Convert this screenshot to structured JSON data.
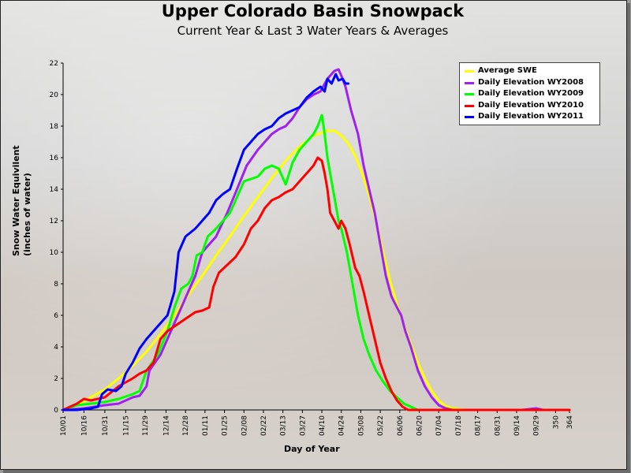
{
  "chart_data": {
    "type": "line",
    "title": "Upper Colorado Basin Snowpack",
    "subtitle": "Current Year & Last 3 Water Years & Averages",
    "xlabel": "Day of Year",
    "ylabel": [
      "Snow Water Equivilent",
      "(inches of water)"
    ],
    "xlim": [
      0,
      364
    ],
    "ylim": [
      0,
      22
    ],
    "y_ticks": [
      0,
      2,
      4,
      6,
      8,
      10,
      12,
      14,
      16,
      18,
      20,
      22
    ],
    "x_ticks": [
      {
        "day": 0,
        "label": "10/01"
      },
      {
        "day": 15,
        "label": "10/16"
      },
      {
        "day": 30,
        "label": "10/31"
      },
      {
        "day": 45,
        "label": "11/15"
      },
      {
        "day": 59,
        "label": "11/29"
      },
      {
        "day": 74,
        "label": "12/14"
      },
      {
        "day": 88,
        "label": "12/28"
      },
      {
        "day": 102,
        "label": "01/11"
      },
      {
        "day": 116,
        "label": "01/25"
      },
      {
        "day": 130,
        "label": "02/08"
      },
      {
        "day": 144,
        "label": "02/22"
      },
      {
        "day": 158,
        "label": "03/13"
      },
      {
        "day": 172,
        "label": "03/27"
      },
      {
        "day": 186,
        "label": "04/10"
      },
      {
        "day": 200,
        "label": "04/24"
      },
      {
        "day": 214,
        "label": "05/08"
      },
      {
        "day": 228,
        "label": "05/22"
      },
      {
        "day": 242,
        "label": "06/06"
      },
      {
        "day": 256,
        "label": "06/20"
      },
      {
        "day": 270,
        "label": "07/04"
      },
      {
        "day": 284,
        "label": "07/18"
      },
      {
        "day": 298,
        "label": "08/17"
      },
      {
        "day": 312,
        "label": "08/31"
      },
      {
        "day": 326,
        "label": "09/14"
      },
      {
        "day": 340,
        "label": "09/29"
      },
      {
        "day": 354,
        "label": "350"
      },
      {
        "day": 364,
        "label": "364"
      }
    ],
    "legend_position": "top-right",
    "series": [
      {
        "name": "Average SWE",
        "color": "#ffff00",
        "points": [
          [
            0,
            0
          ],
          [
            10,
            0.3
          ],
          [
            20,
            0.8
          ],
          [
            30,
            1.3
          ],
          [
            40,
            2
          ],
          [
            50,
            2.8
          ],
          [
            60,
            3.7
          ],
          [
            70,
            4.8
          ],
          [
            80,
            6
          ],
          [
            90,
            7.3
          ],
          [
            100,
            8.5
          ],
          [
            110,
            9.8
          ],
          [
            120,
            11
          ],
          [
            130,
            12.3
          ],
          [
            140,
            13.5
          ],
          [
            150,
            14.7
          ],
          [
            160,
            15.8
          ],
          [
            170,
            16.7
          ],
          [
            180,
            17.4
          ],
          [
            190,
            17.7
          ],
          [
            195,
            17.7
          ],
          [
            200,
            17.4
          ],
          [
            205,
            16.9
          ],
          [
            210,
            16.1
          ],
          [
            215,
            15
          ],
          [
            220,
            13.6
          ],
          [
            225,
            12
          ],
          [
            230,
            10
          ],
          [
            235,
            8.2
          ],
          [
            240,
            6.7
          ],
          [
            245,
            5.4
          ],
          [
            250,
            4.2
          ],
          [
            255,
            3
          ],
          [
            260,
            2
          ],
          [
            265,
            1.2
          ],
          [
            270,
            0.6
          ],
          [
            275,
            0.25
          ],
          [
            280,
            0.1
          ],
          [
            290,
            0
          ],
          [
            364,
            0
          ]
        ]
      },
      {
        "name": "Daily Elevation WY2008",
        "color": "#a020f0",
        "points": [
          [
            0,
            0
          ],
          [
            15,
            0.1
          ],
          [
            30,
            0.3
          ],
          [
            40,
            0.4
          ],
          [
            50,
            0.8
          ],
          [
            55,
            0.9
          ],
          [
            60,
            1.5
          ],
          [
            62,
            2.5
          ],
          [
            70,
            3.5
          ],
          [
            75,
            4.5
          ],
          [
            80,
            5.5
          ],
          [
            85,
            6.5
          ],
          [
            90,
            7.5
          ],
          [
            95,
            8.5
          ],
          [
            100,
            10
          ],
          [
            110,
            11
          ],
          [
            118,
            12.5
          ],
          [
            125,
            14
          ],
          [
            132,
            15.5
          ],
          [
            140,
            16.5
          ],
          [
            145,
            17
          ],
          [
            150,
            17.5
          ],
          [
            155,
            17.8
          ],
          [
            160,
            18
          ],
          [
            165,
            18.5
          ],
          [
            170,
            19.2
          ],
          [
            175,
            19.7
          ],
          [
            180,
            20
          ],
          [
            185,
            20.2
          ],
          [
            190,
            21
          ],
          [
            195,
            21.5
          ],
          [
            198,
            21.6
          ],
          [
            200,
            21.2
          ],
          [
            203,
            20.5
          ],
          [
            207,
            19
          ],
          [
            212,
            17.5
          ],
          [
            216,
            15.5
          ],
          [
            220,
            14
          ],
          [
            224,
            12.5
          ],
          [
            228,
            10.5
          ],
          [
            232,
            8.5
          ],
          [
            236,
            7.2
          ],
          [
            240,
            6.5
          ],
          [
            243,
            6
          ],
          [
            246,
            5
          ],
          [
            250,
            4
          ],
          [
            255,
            2.5
          ],
          [
            260,
            1.5
          ],
          [
            265,
            0.8
          ],
          [
            270,
            0.3
          ],
          [
            275,
            0.1
          ],
          [
            280,
            0
          ],
          [
            330,
            0
          ],
          [
            340,
            0.1
          ],
          [
            345,
            0
          ],
          [
            364,
            0
          ]
        ]
      },
      {
        "name": "Daily Elevation WY2009",
        "color": "#00ff00",
        "points": [
          [
            0,
            0
          ],
          [
            10,
            0.3
          ],
          [
            20,
            0.4
          ],
          [
            30,
            0.5
          ],
          [
            40,
            0.7
          ],
          [
            50,
            1
          ],
          [
            55,
            1.2
          ],
          [
            60,
            2.5
          ],
          [
            68,
            3.5
          ],
          [
            75,
            5
          ],
          [
            80,
            6.5
          ],
          [
            85,
            7.7
          ],
          [
            90,
            8
          ],
          [
            93,
            8.5
          ],
          [
            96,
            9.8
          ],
          [
            100,
            10
          ],
          [
            104,
            11
          ],
          [
            110,
            11.5
          ],
          [
            115,
            12
          ],
          [
            120,
            12.5
          ],
          [
            125,
            13.5
          ],
          [
            130,
            14.5
          ],
          [
            140,
            14.8
          ],
          [
            145,
            15.3
          ],
          [
            150,
            15.5
          ],
          [
            155,
            15.3
          ],
          [
            160,
            14.3
          ],
          [
            165,
            15.7
          ],
          [
            170,
            16.5
          ],
          [
            175,
            17
          ],
          [
            180,
            17.5
          ],
          [
            183,
            18
          ],
          [
            186,
            18.7
          ],
          [
            188,
            17.5
          ],
          [
            190,
            16
          ],
          [
            192,
            15
          ],
          [
            195,
            13.5
          ],
          [
            198,
            12
          ],
          [
            200,
            11.5
          ],
          [
            204,
            10
          ],
          [
            208,
            8
          ],
          [
            212,
            6
          ],
          [
            216,
            4.5
          ],
          [
            220,
            3.5
          ],
          [
            225,
            2.5
          ],
          [
            230,
            1.8
          ],
          [
            235,
            1.2
          ],
          [
            240,
            0.8
          ],
          [
            245,
            0.4
          ],
          [
            250,
            0.2
          ],
          [
            255,
            0
          ],
          [
            364,
            0
          ]
        ]
      },
      {
        "name": "Daily Elevation WY2010",
        "color": "#ff0000",
        "points": [
          [
            0,
            0
          ],
          [
            10,
            0.4
          ],
          [
            15,
            0.7
          ],
          [
            20,
            0.6
          ],
          [
            30,
            0.8
          ],
          [
            40,
            1.5
          ],
          [
            50,
            2
          ],
          [
            55,
            2.3
          ],
          [
            60,
            2.5
          ],
          [
            65,
            3
          ],
          [
            70,
            4.5
          ],
          [
            75,
            5
          ],
          [
            80,
            5.3
          ],
          [
            85,
            5.6
          ],
          [
            90,
            5.9
          ],
          [
            95,
            6.2
          ],
          [
            100,
            6.3
          ],
          [
            105,
            6.5
          ],
          [
            108,
            7.8
          ],
          [
            112,
            8.7
          ],
          [
            118,
            9.2
          ],
          [
            124,
            9.7
          ],
          [
            130,
            10.5
          ],
          [
            135,
            11.5
          ],
          [
            140,
            12
          ],
          [
            145,
            12.8
          ],
          [
            150,
            13.3
          ],
          [
            155,
            13.5
          ],
          [
            160,
            13.8
          ],
          [
            165,
            14
          ],
          [
            170,
            14.5
          ],
          [
            175,
            15
          ],
          [
            180,
            15.5
          ],
          [
            183,
            16
          ],
          [
            186,
            15.8
          ],
          [
            188,
            15
          ],
          [
            190,
            14
          ],
          [
            192,
            12.5
          ],
          [
            195,
            12
          ],
          [
            198,
            11.5
          ],
          [
            200,
            12
          ],
          [
            203,
            11.5
          ],
          [
            206,
            10.5
          ],
          [
            210,
            9
          ],
          [
            213,
            8.5
          ],
          [
            216,
            7.5
          ],
          [
            220,
            6
          ],
          [
            224,
            4.5
          ],
          [
            228,
            3
          ],
          [
            232,
            2
          ],
          [
            236,
            1.2
          ],
          [
            240,
            0.6
          ],
          [
            244,
            0.2
          ],
          [
            248,
            0
          ],
          [
            364,
            0
          ]
        ]
      },
      {
        "name": "Daily Elevation WY2011",
        "color": "#0000ff",
        "points": [
          [
            0,
            0
          ],
          [
            10,
            0
          ],
          [
            20,
            0.1
          ],
          [
            25,
            0.2
          ],
          [
            28,
            1
          ],
          [
            32,
            1.3
          ],
          [
            38,
            1.2
          ],
          [
            42,
            1.5
          ],
          [
            45,
            2.3
          ],
          [
            50,
            3
          ],
          [
            55,
            3.9
          ],
          [
            60,
            4.5
          ],
          [
            65,
            5
          ],
          [
            70,
            5.5
          ],
          [
            75,
            6
          ],
          [
            80,
            7.5
          ],
          [
            83,
            10
          ],
          [
            88,
            11
          ],
          [
            95,
            11.5
          ],
          [
            100,
            12
          ],
          [
            105,
            12.5
          ],
          [
            110,
            13.3
          ],
          [
            115,
            13.7
          ],
          [
            120,
            14
          ],
          [
            125,
            15.3
          ],
          [
            130,
            16.5
          ],
          [
            135,
            17
          ],
          [
            140,
            17.5
          ],
          [
            145,
            17.8
          ],
          [
            150,
            18
          ],
          [
            155,
            18.5
          ],
          [
            160,
            18.8
          ],
          [
            165,
            19
          ],
          [
            170,
            19.2
          ],
          [
            175,
            19.8
          ],
          [
            180,
            20.2
          ],
          [
            185,
            20.5
          ],
          [
            188,
            20.2
          ],
          [
            190,
            21
          ],
          [
            193,
            20.7
          ],
          [
            196,
            21.3
          ],
          [
            198,
            20.9
          ],
          [
            201,
            21
          ],
          [
            203,
            20.7
          ],
          [
            205,
            20.7
          ]
        ]
      }
    ]
  }
}
